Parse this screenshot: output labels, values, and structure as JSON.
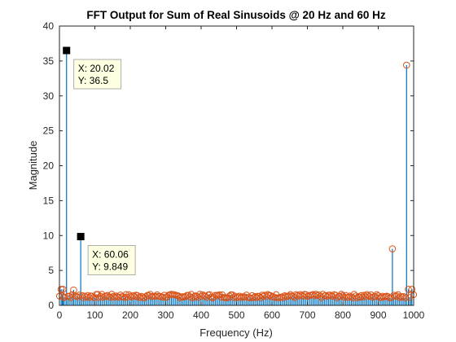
{
  "chart_data": {
    "type": "stem",
    "title": "FFT Output for Sum of Real Sinusoids @ 20 Hz and 60 Hz",
    "xlabel": "Frequency (Hz)",
    "ylabel": "Magnitude",
    "xlim": [
      0,
      1000
    ],
    "ylim": [
      0,
      40
    ],
    "xticks": [
      0,
      100,
      200,
      300,
      400,
      500,
      600,
      700,
      800,
      900,
      1000
    ],
    "yticks": [
      0,
      5,
      10,
      15,
      20,
      25,
      30,
      35,
      40
    ],
    "grid": false,
    "stem_color": "#0072bd",
    "marker_color": "#d95319",
    "noise_level": 1.4,
    "noise_spacing_hz": 4,
    "peaks": [
      {
        "x": 5,
        "y": 2.3
      },
      {
        "x": 10,
        "y": 2.3
      },
      {
        "x": 20.02,
        "y": 36.5
      },
      {
        "x": 40,
        "y": 2.2
      },
      {
        "x": 60.06,
        "y": 9.849
      },
      {
        "x": 940,
        "y": 8.1
      },
      {
        "x": 980,
        "y": 34.4
      },
      {
        "x": 985,
        "y": 2.3
      },
      {
        "x": 995,
        "y": 2.3
      }
    ],
    "datatips": [
      {
        "x": 20.02,
        "y": 36.5,
        "x_text": "X: 20.02",
        "y_text": "Y: 36.5"
      },
      {
        "x": 60.06,
        "y": 9.849,
        "x_text": "X: 60.06",
        "y_text": "Y: 9.849"
      }
    ]
  }
}
